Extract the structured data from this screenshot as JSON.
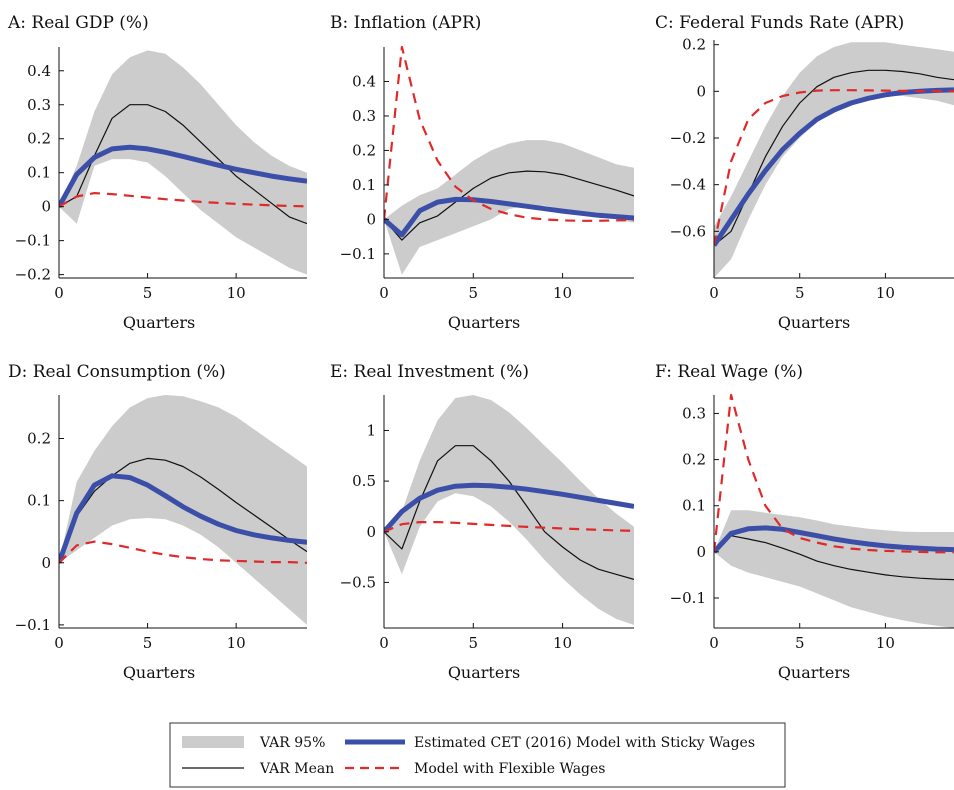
{
  "legend": {
    "band_label": "VAR 95%",
    "var_mean_label": "VAR Mean",
    "sticky_label": "Estimated CET (2016) Model with Sticky Wages",
    "flex_label": "Model with Flexible Wages"
  },
  "colors": {
    "band": "#cccccc",
    "var_mean": "#111111",
    "sticky": "#3b4fa8",
    "flex": "#e02a2a"
  },
  "chart_data": [
    {
      "type": "line",
      "title": "A: Real GDP (%)",
      "xlabel": "Quarters",
      "xlim": [
        0,
        14
      ],
      "ylim": [
        -0.21,
        0.47
      ],
      "xticks": [
        0,
        5,
        10
      ],
      "xtick_labels": [
        "0",
        "5",
        "10"
      ],
      "yticks": [
        -0.2,
        -0.1,
        0,
        0.1,
        0.2,
        0.3,
        0.4
      ],
      "ytick_labels": [
        "−0.2",
        "−0.1",
        "0",
        "0.1",
        "0.2",
        "0.3",
        "0.4"
      ],
      "x": [
        0,
        1,
        2,
        3,
        4,
        5,
        6,
        7,
        8,
        9,
        10,
        11,
        12,
        13,
        14
      ],
      "series": [
        {
          "name": "VAR 95%",
          "kind": "band",
          "lower": [
            0,
            -0.05,
            0.12,
            0.14,
            0.14,
            0.13,
            0.09,
            0.04,
            -0.01,
            -0.05,
            -0.09,
            -0.12,
            -0.15,
            -0.18,
            -0.2
          ],
          "upper": [
            0,
            0.12,
            0.28,
            0.39,
            0.44,
            0.46,
            0.45,
            0.41,
            0.36,
            0.3,
            0.24,
            0.19,
            0.15,
            0.12,
            0.1
          ]
        },
        {
          "name": "VAR Mean",
          "kind": "mean",
          "values": [
            0,
            0.03,
            0.15,
            0.26,
            0.3,
            0.3,
            0.28,
            0.24,
            0.19,
            0.14,
            0.09,
            0.05,
            0.01,
            -0.03,
            -0.05
          ]
        },
        {
          "name": "Estimated CET (2016) Model with Sticky Wages",
          "kind": "sticky",
          "values": [
            0,
            0.095,
            0.145,
            0.17,
            0.175,
            0.17,
            0.16,
            0.148,
            0.135,
            0.122,
            0.11,
            0.1,
            0.09,
            0.082,
            0.075
          ]
        },
        {
          "name": "Model with Flexible Wages",
          "kind": "flex",
          "values": [
            0,
            0.03,
            0.04,
            0.037,
            0.032,
            0.027,
            0.022,
            0.018,
            0.014,
            0.011,
            0.008,
            0.006,
            0.004,
            0.002,
            0.001
          ]
        }
      ]
    },
    {
      "type": "line",
      "title": "B: Inflation (APR)",
      "xlabel": "Quarters",
      "xlim": [
        0,
        14
      ],
      "ylim": [
        -0.17,
        0.5
      ],
      "xticks": [
        0,
        5,
        10
      ],
      "xtick_labels": [
        "0",
        "5",
        "10"
      ],
      "yticks": [
        -0.1,
        0,
        0.1,
        0.2,
        0.3,
        0.4
      ],
      "ytick_labels": [
        "−0.1",
        "0",
        "0.1",
        "0.2",
        "0.3",
        "0.4"
      ],
      "x": [
        0,
        1,
        2,
        3,
        4,
        5,
        6,
        7,
        8,
        9,
        10,
        11,
        12,
        13,
        14
      ],
      "series": [
        {
          "name": "VAR 95%",
          "kind": "band",
          "lower": [
            0,
            -0.16,
            -0.08,
            -0.06,
            -0.04,
            -0.02,
            0.0,
            0.03,
            0.04,
            0.04,
            0.03,
            0.02,
            0.01,
            0.0,
            -0.01
          ],
          "upper": [
            0,
            0.04,
            0.07,
            0.09,
            0.13,
            0.17,
            0.2,
            0.22,
            0.23,
            0.23,
            0.22,
            0.2,
            0.18,
            0.16,
            0.15
          ]
        },
        {
          "name": "VAR Mean",
          "kind": "mean",
          "values": [
            0,
            -0.06,
            -0.01,
            0.01,
            0.05,
            0.09,
            0.12,
            0.135,
            0.14,
            0.138,
            0.13,
            0.115,
            0.1,
            0.085,
            0.068
          ]
        },
        {
          "name": "Estimated CET (2016) Model with Sticky Wages",
          "kind": "sticky",
          "values": [
            0,
            -0.045,
            0.025,
            0.05,
            0.058,
            0.057,
            0.052,
            0.045,
            0.038,
            0.031,
            0.024,
            0.018,
            0.012,
            0.008,
            0.004
          ]
        },
        {
          "name": "Model with Flexible Wages",
          "kind": "flex",
          "values": [
            0,
            0.5,
            0.29,
            0.17,
            0.095,
            0.055,
            0.03,
            0.015,
            0.005,
            0.0,
            -0.003,
            -0.004,
            -0.004,
            -0.003,
            -0.002
          ]
        }
      ]
    },
    {
      "type": "line",
      "title": "C: Federal Funds Rate (APR)",
      "xlabel": "Quarters",
      "xlim": [
        0,
        14
      ],
      "ylim": [
        -0.8,
        0.22
      ],
      "xticks": [
        0,
        5,
        10
      ],
      "xtick_labels": [
        "0",
        "5",
        "10"
      ],
      "yticks": [
        -0.6,
        -0.4,
        -0.2,
        0,
        0.2
      ],
      "ytick_labels": [
        "−0.6",
        "−0.4",
        "−0.2",
        "0",
        "0.2"
      ],
      "x": [
        0,
        1,
        2,
        3,
        4,
        5,
        6,
        7,
        8,
        9,
        10,
        11,
        12,
        13,
        14
      ],
      "series": [
        {
          "name": "VAR 95%",
          "kind": "band",
          "lower": [
            -0.8,
            -0.72,
            -0.55,
            -0.4,
            -0.28,
            -0.2,
            -0.13,
            -0.08,
            -0.05,
            -0.03,
            -0.02,
            -0.02,
            -0.03,
            -0.04,
            -0.06
          ],
          "upper": [
            -0.58,
            -0.45,
            -0.3,
            -0.15,
            -0.02,
            0.08,
            0.15,
            0.19,
            0.21,
            0.21,
            0.21,
            0.2,
            0.19,
            0.18,
            0.17
          ]
        },
        {
          "name": "VAR Mean",
          "kind": "mean",
          "values": [
            -0.66,
            -0.6,
            -0.44,
            -0.28,
            -0.15,
            -0.05,
            0.02,
            0.06,
            0.08,
            0.09,
            0.09,
            0.085,
            0.075,
            0.06,
            0.05
          ]
        },
        {
          "name": "Estimated CET (2016) Model with Sticky Wages",
          "kind": "sticky",
          "values": [
            -0.66,
            -0.55,
            -0.44,
            -0.34,
            -0.25,
            -0.18,
            -0.12,
            -0.08,
            -0.05,
            -0.03,
            -0.015,
            -0.005,
            0.0,
            0.004,
            0.006
          ]
        },
        {
          "name": "Model with Flexible Wages",
          "kind": "flex",
          "values": [
            -0.66,
            -0.3,
            -0.12,
            -0.05,
            -0.02,
            -0.005,
            0.003,
            0.005,
            0.005,
            0.004,
            0.003,
            0.002,
            0.001,
            0.001,
            0.0
          ]
        }
      ]
    },
    {
      "type": "line",
      "title": "D: Real Consumption (%)",
      "xlabel": "Quarters",
      "xlim": [
        0,
        14
      ],
      "ylim": [
        -0.105,
        0.27
      ],
      "xticks": [
        0,
        5,
        10
      ],
      "xtick_labels": [
        "0",
        "5",
        "10"
      ],
      "yticks": [
        -0.1,
        0,
        0.1,
        0.2
      ],
      "ytick_labels": [
        "−0.1",
        "0",
        "0.1",
        "0.2"
      ],
      "x": [
        0,
        1,
        2,
        3,
        4,
        5,
        6,
        7,
        8,
        9,
        10,
        11,
        12,
        13,
        14
      ],
      "series": [
        {
          "name": "VAR 95%",
          "kind": "band",
          "lower": [
            0,
            0.02,
            0.04,
            0.06,
            0.07,
            0.072,
            0.07,
            0.06,
            0.045,
            0.025,
            0.0,
            -0.025,
            -0.05,
            -0.075,
            -0.1
          ],
          "upper": [
            0,
            0.13,
            0.18,
            0.22,
            0.25,
            0.265,
            0.27,
            0.268,
            0.26,
            0.25,
            0.235,
            0.215,
            0.195,
            0.175,
            0.155
          ]
        },
        {
          "name": "VAR Mean",
          "kind": "mean",
          "values": [
            0,
            0.075,
            0.115,
            0.14,
            0.16,
            0.168,
            0.165,
            0.155,
            0.138,
            0.118,
            0.097,
            0.077,
            0.057,
            0.037,
            0.018
          ]
        },
        {
          "name": "Estimated CET (2016) Model with Sticky Wages",
          "kind": "sticky",
          "values": [
            0,
            0.08,
            0.125,
            0.14,
            0.137,
            0.125,
            0.108,
            0.09,
            0.075,
            0.062,
            0.052,
            0.045,
            0.04,
            0.036,
            0.033
          ]
        },
        {
          "name": "Model with Flexible Wages",
          "kind": "flex",
          "values": [
            0,
            0.028,
            0.034,
            0.03,
            0.024,
            0.018,
            0.013,
            0.009,
            0.006,
            0.004,
            0.003,
            0.002,
            0.001,
            0.001,
            0.0
          ]
        }
      ]
    },
    {
      "type": "line",
      "title": "E: Real Investment (%)",
      "xlabel": "Quarters",
      "xlim": [
        0,
        14
      ],
      "ylim": [
        -0.95,
        1.35
      ],
      "xticks": [
        0,
        5,
        10
      ],
      "xtick_labels": [
        "0",
        "5",
        "10"
      ],
      "yticks": [
        -0.5,
        0,
        0.5,
        1
      ],
      "ytick_labels": [
        "−0.5",
        "0",
        "0.5",
        "1"
      ],
      "x": [
        0,
        1,
        2,
        3,
        4,
        5,
        6,
        7,
        8,
        9,
        10,
        11,
        12,
        13,
        14
      ],
      "series": [
        {
          "name": "VAR 95%",
          "kind": "band",
          "lower": [
            0,
            -0.42,
            0.05,
            0.3,
            0.38,
            0.35,
            0.25,
            0.1,
            -0.08,
            -0.28,
            -0.46,
            -0.62,
            -0.76,
            -0.86,
            -0.92
          ],
          "upper": [
            0,
            0.2,
            0.7,
            1.1,
            1.32,
            1.35,
            1.3,
            1.18,
            1.02,
            0.85,
            0.68,
            0.5,
            0.33,
            0.18,
            0.05
          ]
        },
        {
          "name": "VAR Mean",
          "kind": "mean",
          "values": [
            0,
            -0.17,
            0.3,
            0.7,
            0.85,
            0.85,
            0.7,
            0.5,
            0.25,
            0.0,
            -0.15,
            -0.28,
            -0.37,
            -0.42,
            -0.47
          ]
        },
        {
          "name": "Estimated CET (2016) Model with Sticky Wages",
          "kind": "sticky",
          "values": [
            0,
            0.2,
            0.33,
            0.41,
            0.45,
            0.46,
            0.455,
            0.44,
            0.42,
            0.395,
            0.37,
            0.34,
            0.31,
            0.28,
            0.25
          ]
        },
        {
          "name": "Model with Flexible Wages",
          "kind": "flex",
          "values": [
            0,
            0.075,
            0.095,
            0.095,
            0.088,
            0.078,
            0.068,
            0.058,
            0.048,
            0.04,
            0.032,
            0.025,
            0.019,
            0.013,
            0.009
          ]
        }
      ]
    },
    {
      "type": "line",
      "title": "F: Real Wage (%)",
      "xlabel": "Quarters",
      "xlim": [
        0,
        14
      ],
      "ylim": [
        -0.165,
        0.34
      ],
      "xticks": [
        0,
        5,
        10
      ],
      "xtick_labels": [
        "0",
        "5",
        "10"
      ],
      "yticks": [
        -0.1,
        0,
        0.1,
        0.2,
        0.3
      ],
      "ytick_labels": [
        "−0.1",
        "0",
        "0.1",
        "0.2",
        "0.3"
      ],
      "x": [
        0,
        1,
        2,
        3,
        4,
        5,
        6,
        7,
        8,
        9,
        10,
        11,
        12,
        13,
        14
      ],
      "series": [
        {
          "name": "VAR 95%",
          "kind": "band",
          "lower": [
            0,
            -0.03,
            -0.045,
            -0.055,
            -0.065,
            -0.075,
            -0.09,
            -0.105,
            -0.12,
            -0.13,
            -0.14,
            -0.148,
            -0.155,
            -0.16,
            -0.165
          ],
          "upper": [
            0,
            0.09,
            0.09,
            0.085,
            0.08,
            0.075,
            0.068,
            0.06,
            0.055,
            0.05,
            0.047,
            0.044,
            0.043,
            0.043,
            0.043
          ]
        },
        {
          "name": "VAR Mean",
          "kind": "mean",
          "values": [
            0,
            0.035,
            0.028,
            0.02,
            0.008,
            -0.005,
            -0.02,
            -0.03,
            -0.038,
            -0.044,
            -0.05,
            -0.054,
            -0.057,
            -0.059,
            -0.06
          ]
        },
        {
          "name": "Estimated CET (2016) Model with Sticky Wages",
          "kind": "sticky",
          "values": [
            0,
            0.04,
            0.05,
            0.052,
            0.049,
            0.042,
            0.035,
            0.028,
            0.022,
            0.017,
            0.013,
            0.01,
            0.008,
            0.006,
            0.005
          ]
        },
        {
          "name": "Model with Flexible Wages",
          "kind": "flex",
          "values": [
            0,
            0.34,
            0.2,
            0.1,
            0.05,
            0.03,
            0.02,
            0.012,
            0.007,
            0.004,
            0.002,
            0.001,
            0.0,
            -0.001,
            -0.001
          ]
        }
      ]
    }
  ]
}
